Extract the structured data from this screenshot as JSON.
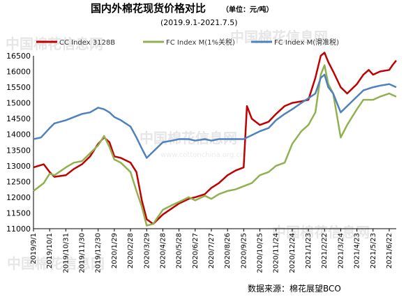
{
  "chart_data": {
    "type": "line",
    "title": "国内外棉花现货价格对比",
    "unit": "（单位：元/吨）",
    "subtitle": "(2019.9.1-2021.7.5)",
    "source": "数据来源：棉花展望BCO",
    "watermark": "中国棉花信息网",
    "watermark_url": "www.cottonchina.org.cn",
    "ylim": [
      11000,
      16500
    ],
    "yticks": [
      11000,
      11500,
      12000,
      12500,
      13000,
      13500,
      14000,
      14500,
      15000,
      15500,
      16000,
      16500
    ],
    "xlim": [
      "2019-09-01",
      "2021-07-05"
    ],
    "xticks": [
      "2019/9/1",
      "2019/10/1",
      "2019/10/31",
      "2019/11/30",
      "2019/12/30",
      "2020/1/29",
      "2020/2/28",
      "2020/3/29",
      "2020/4/28",
      "2020/5/28",
      "2020/6/27",
      "2020/7/27",
      "2020/8/26",
      "2020/9/25",
      "2020/10/25",
      "2020/11/24",
      "2020/12/24",
      "2021/1/23",
      "2021/2/22",
      "2021/3/24",
      "2021/4/23",
      "2021/5/23",
      "2021/6/22"
    ],
    "grid": false,
    "legend_position": "top",
    "series": [
      {
        "name": "CC Index 3128B",
        "color": "#c00000",
        "points": [
          [
            "2019-09-01",
            12950
          ],
          [
            "2019-09-20",
            13050
          ],
          [
            "2019-10-01",
            12800
          ],
          [
            "2019-10-10",
            12650
          ],
          [
            "2019-10-31",
            12700
          ],
          [
            "2019-11-15",
            12900
          ],
          [
            "2019-11-30",
            13050
          ],
          [
            "2019-12-15",
            13300
          ],
          [
            "2019-12-30",
            13700
          ],
          [
            "2020-01-10",
            13900
          ],
          [
            "2020-01-20",
            13750
          ],
          [
            "2020-01-29",
            13300
          ],
          [
            "2020-02-10",
            13250
          ],
          [
            "2020-02-28",
            13100
          ],
          [
            "2020-03-10",
            12800
          ],
          [
            "2020-03-20",
            11900
          ],
          [
            "2020-03-29",
            11300
          ],
          [
            "2020-04-10",
            11150
          ],
          [
            "2020-04-28",
            11450
          ],
          [
            "2020-05-15",
            11650
          ],
          [
            "2020-05-28",
            11800
          ],
          [
            "2020-06-15",
            11950
          ],
          [
            "2020-06-27",
            12000
          ],
          [
            "2020-07-15",
            12100
          ],
          [
            "2020-07-27",
            12300
          ],
          [
            "2020-08-10",
            12450
          ],
          [
            "2020-08-26",
            12700
          ],
          [
            "2020-09-10",
            12850
          ],
          [
            "2020-09-25",
            12950
          ],
          [
            "2020-10-01",
            14900
          ],
          [
            "2020-10-10",
            14500
          ],
          [
            "2020-10-25",
            14300
          ],
          [
            "2020-11-10",
            14400
          ],
          [
            "2020-11-24",
            14650
          ],
          [
            "2020-12-10",
            14900
          ],
          [
            "2020-12-24",
            15000
          ],
          [
            "2021-01-10",
            15050
          ],
          [
            "2021-01-23",
            15100
          ],
          [
            "2021-02-05",
            15800
          ],
          [
            "2021-02-15",
            16500
          ],
          [
            "2021-02-22",
            16600
          ],
          [
            "2021-03-01",
            16300
          ],
          [
            "2021-03-10",
            16000
          ],
          [
            "2021-03-24",
            15500
          ],
          [
            "2021-04-05",
            15300
          ],
          [
            "2021-04-23",
            15600
          ],
          [
            "2021-05-05",
            15900
          ],
          [
            "2021-05-15",
            16050
          ],
          [
            "2021-05-23",
            15900
          ],
          [
            "2021-06-05",
            16000
          ],
          [
            "2021-06-22",
            16050
          ],
          [
            "2021-06-28",
            16200
          ],
          [
            "2021-07-05",
            16350
          ]
        ]
      },
      {
        "name": "FC Index M(1%关税)",
        "color": "#92b050",
        "points": [
          [
            "2019-09-01",
            12200
          ],
          [
            "2019-09-20",
            12450
          ],
          [
            "2019-10-01",
            12750
          ],
          [
            "2019-10-10",
            12700
          ],
          [
            "2019-10-31",
            12950
          ],
          [
            "2019-11-15",
            13100
          ],
          [
            "2019-11-30",
            13150
          ],
          [
            "2019-12-15",
            13400
          ],
          [
            "2019-12-30",
            13650
          ],
          [
            "2020-01-10",
            13950
          ],
          [
            "2020-01-20",
            13600
          ],
          [
            "2020-01-29",
            13200
          ],
          [
            "2020-02-10",
            13100
          ],
          [
            "2020-02-28",
            12800
          ],
          [
            "2020-03-10",
            12200
          ],
          [
            "2020-03-20",
            11700
          ],
          [
            "2020-03-29",
            11100
          ],
          [
            "2020-04-10",
            11150
          ],
          [
            "2020-04-28",
            11600
          ],
          [
            "2020-05-15",
            11750
          ],
          [
            "2020-05-28",
            11850
          ],
          [
            "2020-06-15",
            12000
          ],
          [
            "2020-06-27",
            11900
          ],
          [
            "2020-07-15",
            12050
          ],
          [
            "2020-07-27",
            11950
          ],
          [
            "2020-08-10",
            12100
          ],
          [
            "2020-08-26",
            12200
          ],
          [
            "2020-09-10",
            12250
          ],
          [
            "2020-09-25",
            12350
          ],
          [
            "2020-10-10",
            12450
          ],
          [
            "2020-10-25",
            12700
          ],
          [
            "2020-11-10",
            12800
          ],
          [
            "2020-11-24",
            13000
          ],
          [
            "2020-12-10",
            13100
          ],
          [
            "2020-12-24",
            13700
          ],
          [
            "2021-01-10",
            14100
          ],
          [
            "2021-01-23",
            14300
          ],
          [
            "2021-02-05",
            14700
          ],
          [
            "2021-02-15",
            15900
          ],
          [
            "2021-02-22",
            16200
          ],
          [
            "2021-03-01",
            15600
          ],
          [
            "2021-03-10",
            15300
          ],
          [
            "2021-03-24",
            13900
          ],
          [
            "2021-04-05",
            14300
          ],
          [
            "2021-04-23",
            14800
          ],
          [
            "2021-05-05",
            15100
          ],
          [
            "2021-05-23",
            15100
          ],
          [
            "2021-06-05",
            15200
          ],
          [
            "2021-06-22",
            15300
          ],
          [
            "2021-07-05",
            15200
          ]
        ]
      },
      {
        "name": "FC Index M(滑准税)",
        "color": "#4f81bd",
        "points": [
          [
            "2019-09-01",
            13850
          ],
          [
            "2019-09-15",
            13900
          ],
          [
            "2019-10-01",
            14200
          ],
          [
            "2019-10-10",
            14350
          ],
          [
            "2019-10-31",
            14450
          ],
          [
            "2019-11-15",
            14550
          ],
          [
            "2019-11-30",
            14650
          ],
          [
            "2019-12-15",
            14700
          ],
          [
            "2019-12-30",
            14850
          ],
          [
            "2020-01-10",
            14800
          ],
          [
            "2020-01-20",
            14700
          ],
          [
            "2020-01-29",
            14550
          ],
          [
            "2020-02-10",
            14450
          ],
          [
            "2020-02-28",
            14250
          ],
          [
            "2020-03-10",
            13900
          ],
          [
            "2020-03-20",
            13550
          ],
          [
            "2020-03-29",
            13250
          ],
          [
            "2020-04-10",
            13450
          ],
          [
            "2020-04-28",
            13750
          ],
          [
            "2020-05-15",
            13800
          ],
          [
            "2020-05-28",
            13850
          ],
          [
            "2020-06-15",
            13850
          ],
          [
            "2020-06-27",
            13800
          ],
          [
            "2020-07-15",
            13850
          ],
          [
            "2020-07-27",
            13800
          ],
          [
            "2020-08-10",
            13850
          ],
          [
            "2020-08-26",
            13850
          ],
          [
            "2020-09-10",
            13850
          ],
          [
            "2020-09-25",
            13850
          ],
          [
            "2020-10-25",
            14100
          ],
          [
            "2020-11-10",
            14200
          ],
          [
            "2020-11-24",
            14450
          ],
          [
            "2020-12-10",
            14650
          ],
          [
            "2020-12-24",
            14800
          ],
          [
            "2021-01-10",
            15000
          ],
          [
            "2021-01-23",
            15150
          ],
          [
            "2021-02-05",
            15300
          ],
          [
            "2021-02-15",
            15800
          ],
          [
            "2021-02-22",
            15900
          ],
          [
            "2021-03-01",
            15500
          ],
          [
            "2021-03-10",
            15300
          ],
          [
            "2021-03-24",
            14700
          ],
          [
            "2021-04-05",
            14900
          ],
          [
            "2021-04-23",
            15200
          ],
          [
            "2021-05-05",
            15400
          ],
          [
            "2021-05-23",
            15500
          ],
          [
            "2021-06-05",
            15550
          ],
          [
            "2021-06-22",
            15600
          ],
          [
            "2021-07-05",
            15500
          ]
        ]
      }
    ]
  }
}
